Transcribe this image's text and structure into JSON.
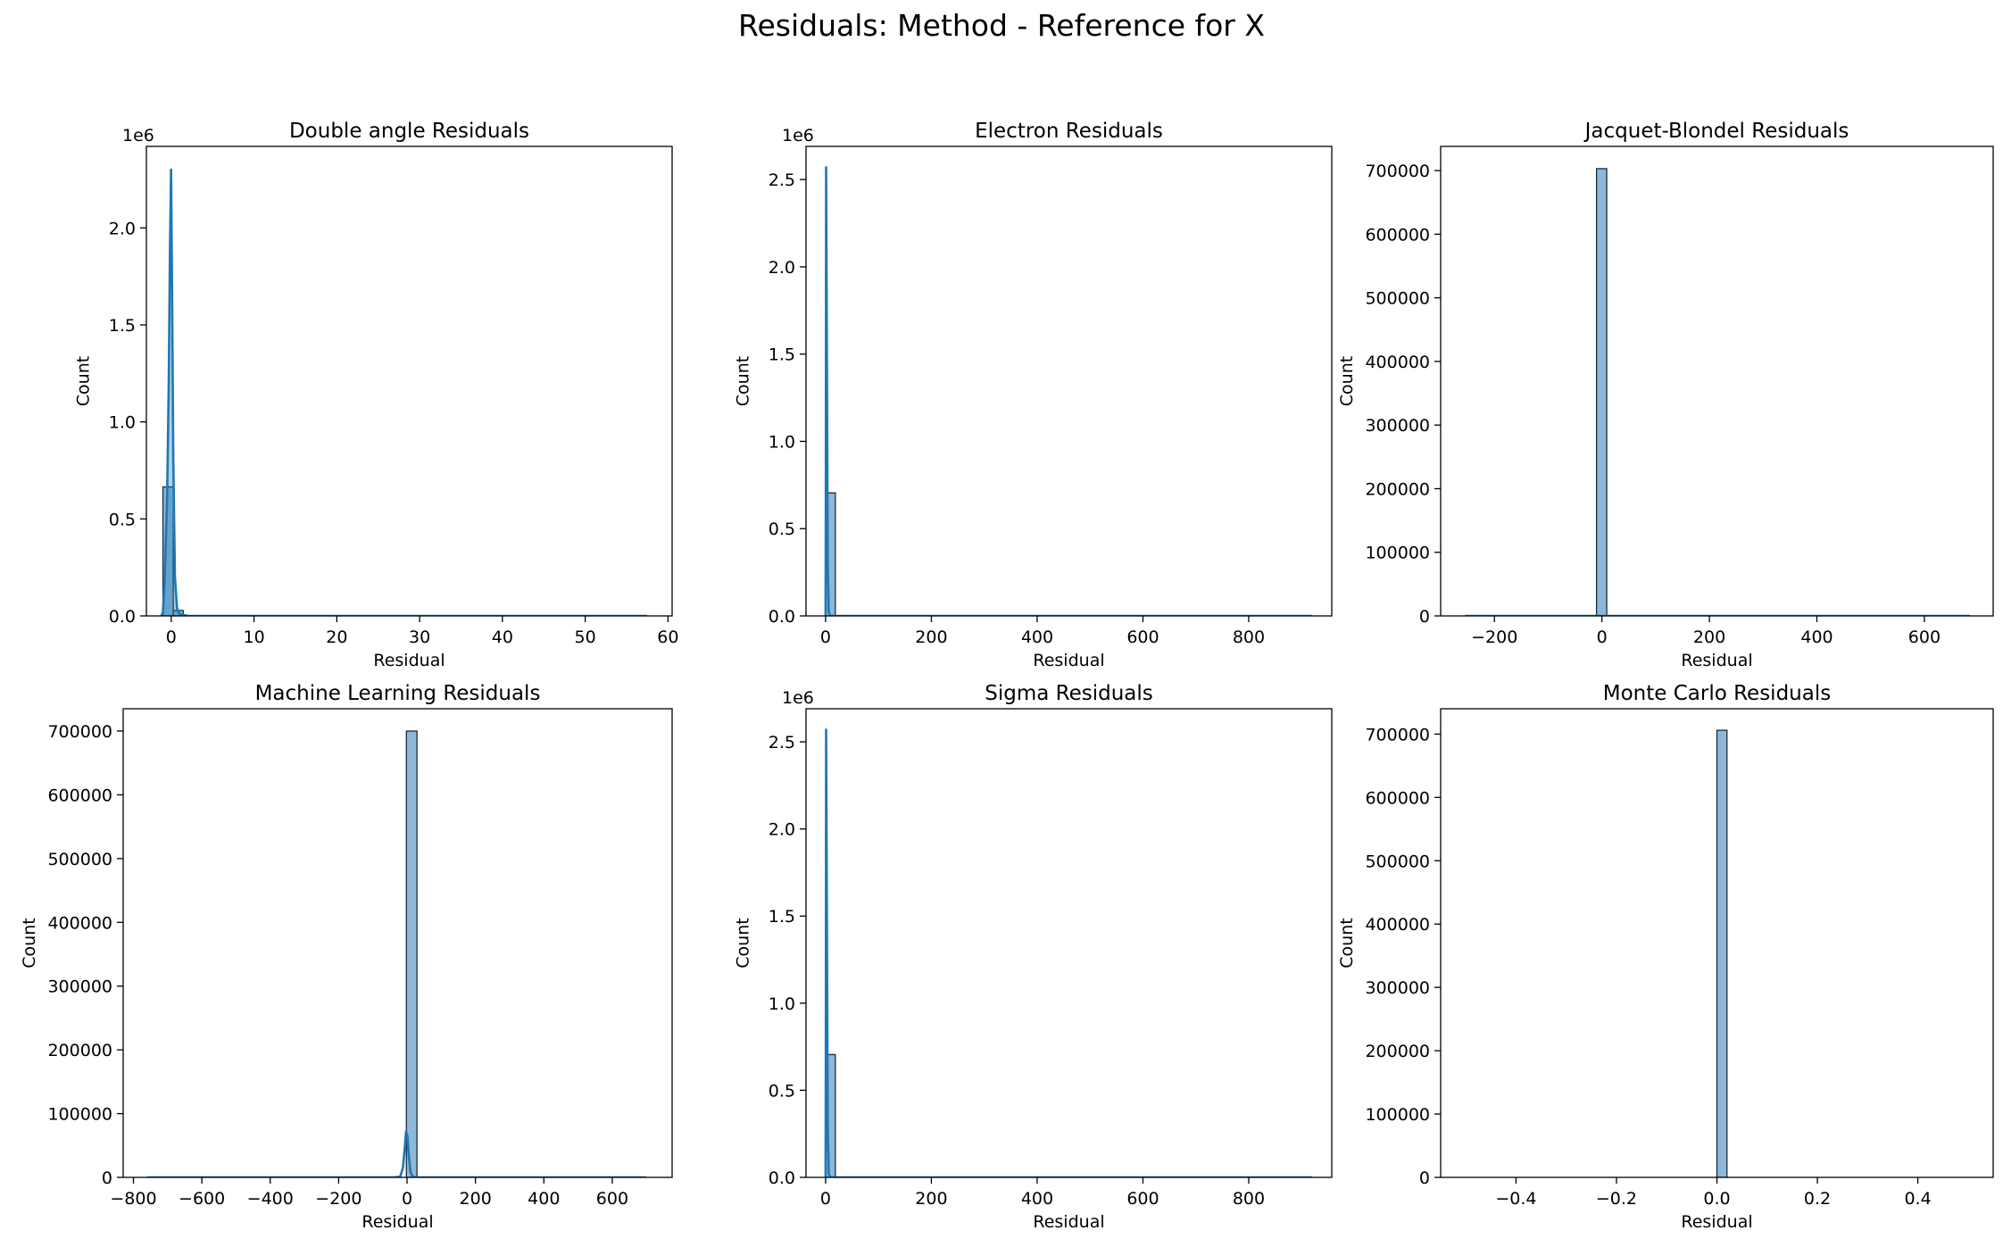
{
  "figure": {
    "suptitle": "Residuals: Method - Reference for X"
  },
  "colors": {
    "bar_fill": "#8eb8d8",
    "bar_edge": "#1b2a38",
    "kde_line": "#1f77b4",
    "kde_fill": "#1f77b4",
    "axes": "#000000",
    "background": "#ffffff"
  },
  "chart_data": [
    {
      "type": "histogram",
      "title": "Double angle Residuals",
      "xlabel": "Residual",
      "ylabel": "Count",
      "offset_text": "1e6",
      "xlim": [
        -3.0,
        60.5
      ],
      "ylim": [
        0,
        2.42
      ],
      "xticks": [
        0,
        10,
        20,
        30,
        40,
        50,
        60
      ],
      "xtick_labels": [
        "0",
        "10",
        "20",
        "30",
        "40",
        "50",
        "60"
      ],
      "yticks": [
        0.0,
        0.5,
        1.0,
        1.5,
        2.0
      ],
      "ytick_labels": [
        "0.0",
        "0.5",
        "1.0",
        "1.5",
        "2.0"
      ],
      "bins": [
        {
          "x0": -1.0,
          "x1": 0.25,
          "count": 0.665
        },
        {
          "x0": 0.25,
          "x1": 1.45,
          "count": 0.028
        },
        {
          "x0": 1.45,
          "x1": 57.5,
          "count": 0.0
        }
      ],
      "kde": [
        [
          -1.2,
          0.0
        ],
        [
          -1.0,
          0.02
        ],
        [
          -0.8,
          0.18
        ],
        [
          -0.5,
          0.6
        ],
        [
          -0.3,
          1.2
        ],
        [
          -0.15,
          1.9
        ],
        [
          -0.02,
          2.3
        ],
        [
          0.1,
          1.7
        ],
        [
          0.25,
          0.8
        ],
        [
          0.45,
          0.2
        ],
        [
          0.7,
          0.04
        ],
        [
          1.0,
          0.01
        ],
        [
          2.0,
          0.0
        ],
        [
          57.5,
          0.0
        ]
      ],
      "kde_filled": true
    },
    {
      "type": "histogram",
      "title": "Electron Residuals",
      "xlabel": "Residual",
      "ylabel": "Count",
      "offset_text": "1e6",
      "xlim": [
        -37,
        957
      ],
      "ylim": [
        0,
        2.69
      ],
      "xticks": [
        0,
        200,
        400,
        600,
        800
      ],
      "xtick_labels": [
        "0",
        "200",
        "400",
        "600",
        "800"
      ],
      "yticks": [
        0.0,
        0.5,
        1.0,
        1.5,
        2.0,
        2.5
      ],
      "ytick_labels": [
        "0.0",
        "0.5",
        "1.0",
        "1.5",
        "2.0",
        "2.5"
      ],
      "bins": [
        {
          "x0": 0,
          "x1": 18.4,
          "count": 0.705
        }
      ],
      "kde": [
        [
          0,
          0.0
        ],
        [
          0.5,
          0.8
        ],
        [
          1,
          2.57
        ],
        [
          2.5,
          1.5
        ],
        [
          4,
          0.3
        ],
        [
          6,
          0.02
        ],
        [
          9,
          0.0
        ],
        [
          920,
          0.0
        ]
      ],
      "kde_filled": false
    },
    {
      "type": "histogram",
      "title": "Jacquet-Blondel Residuals",
      "xlabel": "Residual",
      "ylabel": "Count",
      "offset_text": "",
      "xlim": [
        -300,
        728
      ],
      "ylim": [
        0,
        738000
      ],
      "xticks": [
        -200,
        0,
        200,
        400,
        600
      ],
      "xtick_labels": [
        "−200",
        "0",
        "200",
        "400",
        "600"
      ],
      "yticks": [
        0,
        100000,
        200000,
        300000,
        400000,
        500000,
        600000,
        700000
      ],
      "ytick_labels": [
        "0",
        "100000",
        "200000",
        "300000",
        "400000",
        "500000",
        "600000",
        "700000"
      ],
      "bins": [
        {
          "x0": -10,
          "x1": 9,
          "count": 703000
        }
      ],
      "kde": [
        [
          -255,
          0
        ],
        [
          685,
          0
        ]
      ],
      "kde_filled": false
    },
    {
      "type": "histogram",
      "title": "Machine Learning Residuals",
      "xlabel": "Residual",
      "ylabel": "Count",
      "offset_text": "",
      "xlim": [
        -830,
        775
      ],
      "ylim": [
        0,
        735000
      ],
      "xticks": [
        -800,
        -600,
        -400,
        -200,
        0,
        200,
        400,
        600
      ],
      "xtick_labels": [
        "−800",
        "−600",
        "−400",
        "−200",
        "0",
        "200",
        "400",
        "600"
      ],
      "yticks": [
        0,
        100000,
        200000,
        300000,
        400000,
        500000,
        600000,
        700000
      ],
      "ytick_labels": [
        "0",
        "100000",
        "200000",
        "300000",
        "400000",
        "500000",
        "600000",
        "700000"
      ],
      "bins": [
        {
          "x0": -2,
          "x1": 29,
          "count": 700000
        }
      ],
      "kde": [
        [
          -760,
          0
        ],
        [
          -40,
          0
        ],
        [
          -20,
          1000
        ],
        [
          -12,
          15000
        ],
        [
          -7,
          45000
        ],
        [
          -3,
          72000
        ],
        [
          1,
          65000
        ],
        [
          5,
          35000
        ],
        [
          10,
          8000
        ],
        [
          18,
          500
        ],
        [
          30,
          0
        ],
        [
          700,
          0
        ]
      ],
      "kde_filled": false
    },
    {
      "type": "histogram",
      "title": "Sigma Residuals",
      "xlabel": "Residual",
      "ylabel": "Count",
      "offset_text": "1e6",
      "xlim": [
        -37,
        957
      ],
      "ylim": [
        0,
        2.69
      ],
      "xticks": [
        0,
        200,
        400,
        600,
        800
      ],
      "xtick_labels": [
        "0",
        "200",
        "400",
        "600",
        "800"
      ],
      "yticks": [
        0.0,
        0.5,
        1.0,
        1.5,
        2.0,
        2.5
      ],
      "ytick_labels": [
        "0.0",
        "0.5",
        "1.0",
        "1.5",
        "2.0",
        "2.5"
      ],
      "bins": [
        {
          "x0": 0,
          "x1": 18.4,
          "count": 0.705
        }
      ],
      "kde": [
        [
          0,
          0.0
        ],
        [
          0.5,
          0.8
        ],
        [
          1,
          2.57
        ],
        [
          2.5,
          1.5
        ],
        [
          4,
          0.3
        ],
        [
          6,
          0.02
        ],
        [
          9,
          0.0
        ],
        [
          920,
          0.0
        ]
      ],
      "kde_filled": false
    },
    {
      "type": "histogram",
      "title": "Monte Carlo Residuals",
      "xlabel": "Residual",
      "ylabel": "Count",
      "offset_text": "",
      "xlim": [
        -0.55,
        0.55
      ],
      "ylim": [
        0,
        740000
      ],
      "xticks": [
        -0.4,
        -0.2,
        0.0,
        0.2,
        0.4
      ],
      "xtick_labels": [
        "−0.4",
        "−0.2",
        "0.0",
        "0.2",
        "0.4"
      ],
      "yticks": [
        0,
        100000,
        200000,
        300000,
        400000,
        500000,
        600000,
        700000
      ],
      "ytick_labels": [
        "0",
        "100000",
        "200000",
        "300000",
        "400000",
        "500000",
        "600000",
        "700000"
      ],
      "bins": [
        {
          "x0": 0.0,
          "x1": 0.02,
          "count": 706000
        }
      ],
      "kde": [],
      "kde_filled": false
    }
  ]
}
